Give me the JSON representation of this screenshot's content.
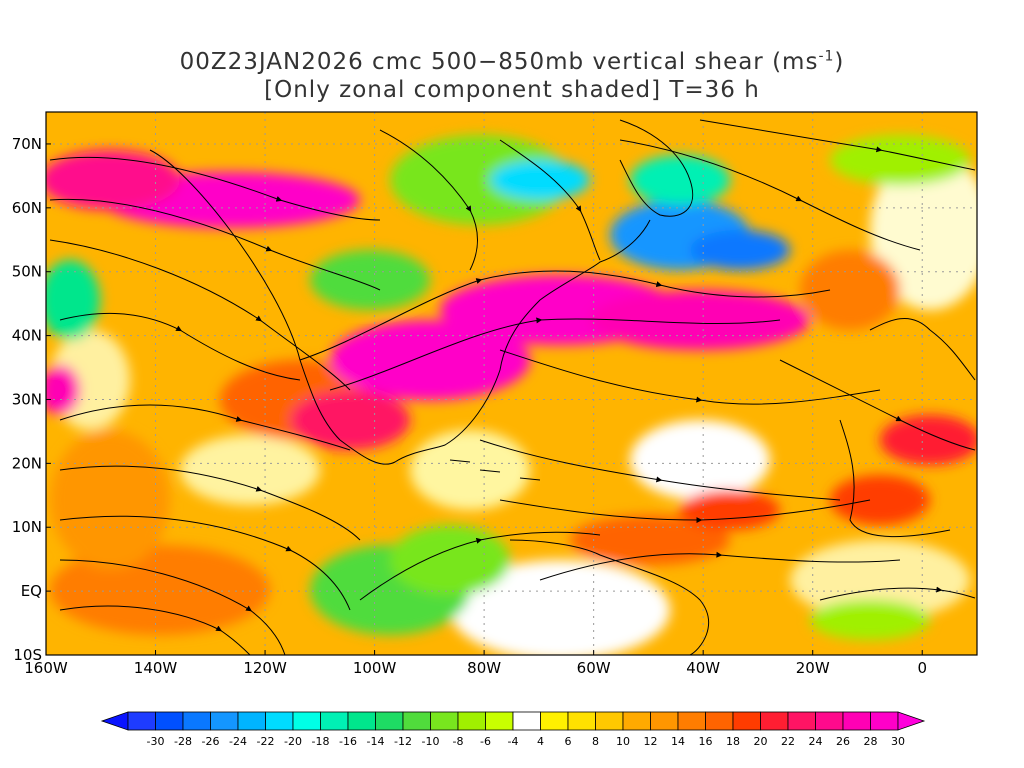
{
  "title": {
    "line1_prefix": "00Z23JAN2026 cmc 500−850mb vertical shear (ms",
    "line1_unit_exp": "-1",
    "line1_suffix": ")",
    "line2": "[Only zonal component shaded] T=36 h"
  },
  "map": {
    "lon_range": [
      -160,
      10
    ],
    "lat_range": [
      -10,
      75
    ],
    "grid": true,
    "x_ticks": [
      {
        "value": -160,
        "label": "160W"
      },
      {
        "value": -140,
        "label": "140W"
      },
      {
        "value": -120,
        "label": "120W"
      },
      {
        "value": -100,
        "label": "100W"
      },
      {
        "value": -80,
        "label": "80W"
      },
      {
        "value": -60,
        "label": "60W"
      },
      {
        "value": -40,
        "label": "40W"
      },
      {
        "value": -20,
        "label": "20W"
      },
      {
        "value": 0,
        "label": "0"
      }
    ],
    "y_ticks": [
      {
        "value": -10,
        "label": "10S"
      },
      {
        "value": 0,
        "label": "EQ"
      },
      {
        "value": 10,
        "label": "10N"
      },
      {
        "value": 20,
        "label": "20N"
      },
      {
        "value": 30,
        "label": "30N"
      },
      {
        "value": 40,
        "label": "40N"
      },
      {
        "value": 50,
        "label": "50N"
      },
      {
        "value": 60,
        "label": "60N"
      },
      {
        "value": 70,
        "label": "70N"
      }
    ]
  },
  "colorbar": {
    "labels": [
      "-30",
      "-28",
      "-26",
      "-24",
      "-22",
      "-20",
      "-18",
      "-16",
      "-14",
      "-12",
      "-10",
      "-8",
      "-6",
      "-4",
      "4",
      "6",
      "8",
      "10",
      "12",
      "14",
      "16",
      "18",
      "20",
      "22",
      "24",
      "26",
      "28",
      "30"
    ],
    "colors": [
      "#1e3cff",
      "#0050ff",
      "#0a78ff",
      "#1496ff",
      "#00b4ff",
      "#00dcff",
      "#00ffe6",
      "#00f0b4",
      "#00e68c",
      "#1edc64",
      "#50dc3c",
      "#78e61e",
      "#a0f000",
      "#c8ff00",
      "#ffffff",
      "#fff000",
      "#ffe100",
      "#ffc800",
      "#ffaa00",
      "#ff9600",
      "#ff7d00",
      "#ff6400",
      "#ff3c00",
      "#ff1e32",
      "#ff1464",
      "#ff0a8c",
      "#ff00b4",
      "#ff00c8"
    ],
    "min_color": "#0a14ff",
    "max_color": "#ff00dc"
  }
}
